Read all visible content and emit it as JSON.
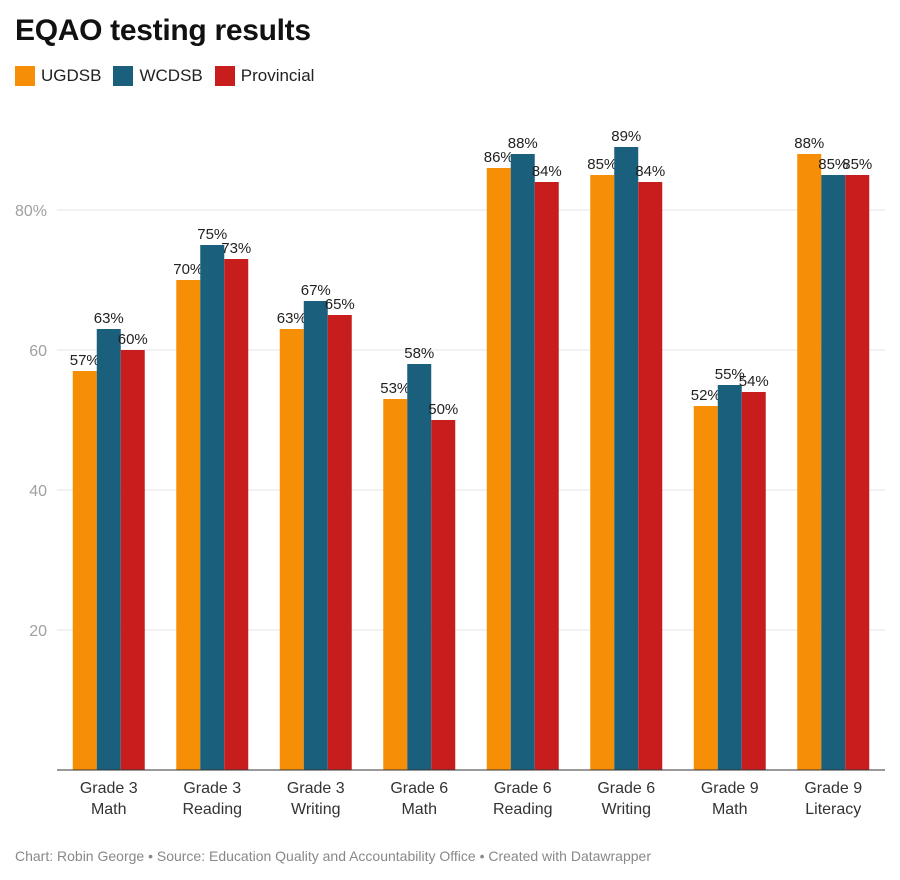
{
  "chart_data": {
    "type": "bar",
    "title": "EQAO testing results",
    "categories": [
      [
        "Grade 3",
        "Math"
      ],
      [
        "Grade 3",
        "Reading"
      ],
      [
        "Grade 3",
        "Writing"
      ],
      [
        "Grade 6",
        "Math"
      ],
      [
        "Grade 6",
        "Reading"
      ],
      [
        "Grade 6",
        "Writing"
      ],
      [
        "Grade 9",
        "Math"
      ],
      [
        "Grade 9",
        "Literacy"
      ]
    ],
    "series": [
      {
        "name": "UGDSB",
        "color": "#f78f06",
        "values": [
          57,
          70,
          63,
          53,
          86,
          85,
          52,
          88
        ]
      },
      {
        "name": "WCDSB",
        "color": "#1a607c",
        "values": [
          63,
          75,
          67,
          58,
          88,
          89,
          55,
          85
        ]
      },
      {
        "name": "Provincial",
        "color": "#c71e1d",
        "values": [
          60,
          73,
          65,
          50,
          84,
          84,
          54,
          85
        ]
      }
    ],
    "yticks": [
      {
        "value": 20,
        "label": "20"
      },
      {
        "value": 40,
        "label": "40"
      },
      {
        "value": 60,
        "label": "60"
      },
      {
        "value": 80,
        "label": "80%"
      }
    ],
    "ylim": [
      0,
      90
    ],
    "grid": true,
    "legend": "top-left",
    "label_suffix": "%"
  },
  "footer": "Chart: Robin George • Source: Education Quality and Accountability Office • Created with Datawrapper"
}
